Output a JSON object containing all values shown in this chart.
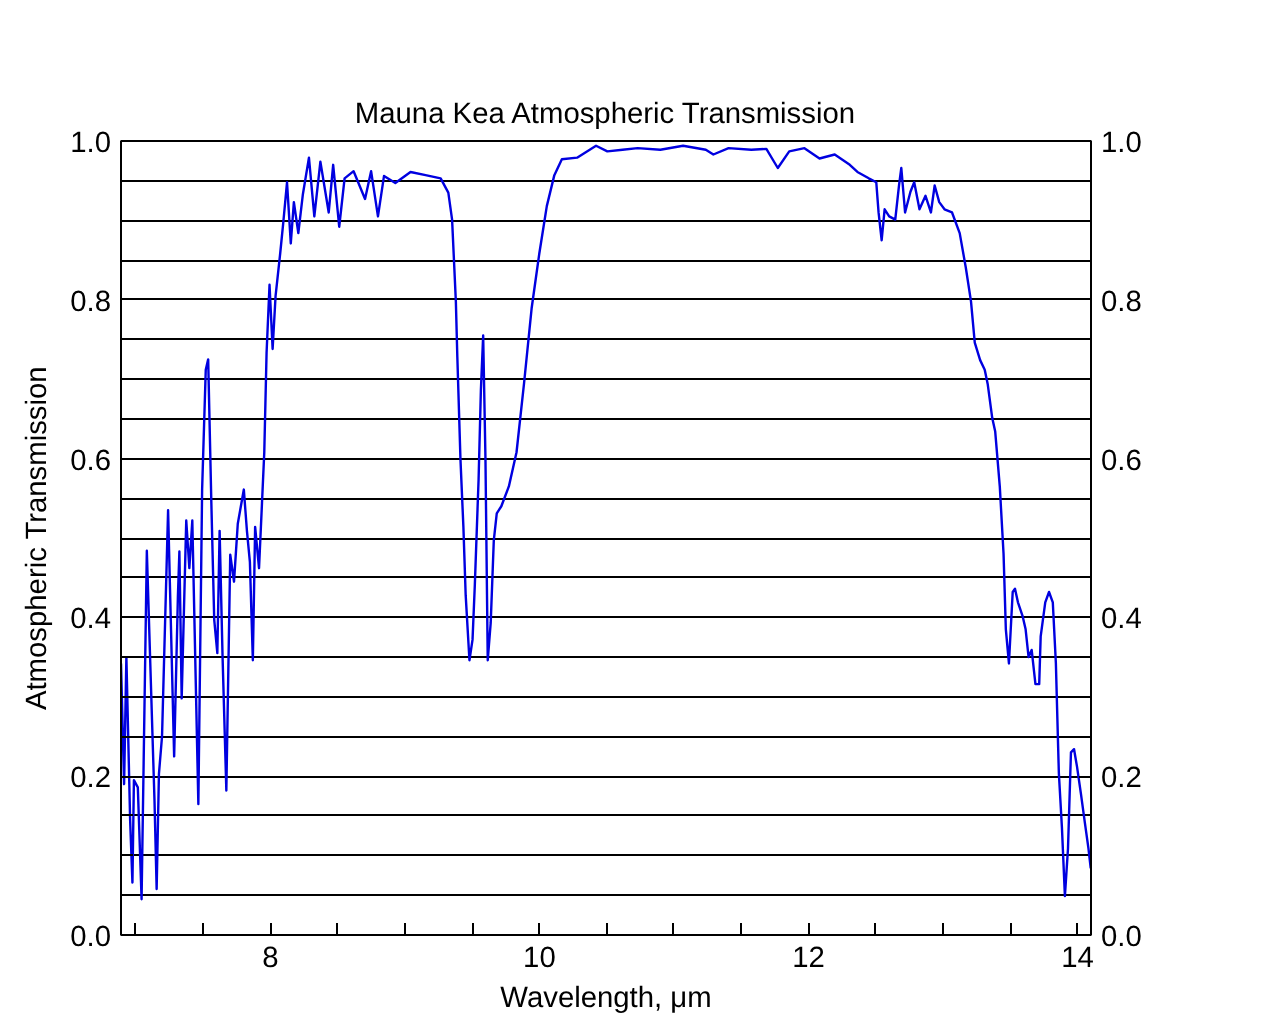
{
  "chart_data": {
    "type": "line",
    "title": "Mauna Kea Atmospheric Transmission",
    "xlabel": "Wavelength, μm",
    "ylabel": "Atmospheric Transmission",
    "x": [
      6.89,
      6.913,
      6.93,
      6.958,
      6.975,
      6.986,
      7.015,
      7.043,
      7.082,
      7.139,
      7.155,
      7.172,
      7.195,
      7.24,
      7.285,
      7.313,
      7.324,
      7.341,
      7.375,
      7.398,
      7.42,
      7.465,
      7.493,
      7.52,
      7.538,
      7.561,
      7.583,
      7.606,
      7.623,
      7.645,
      7.673,
      7.702,
      7.73,
      7.758,
      7.803,
      7.826,
      7.848,
      7.87,
      7.887,
      7.916,
      7.938,
      7.955,
      7.972,
      7.994,
      8.017,
      8.039,
      8.073,
      8.096,
      8.124,
      8.152,
      8.175,
      8.208,
      8.242,
      8.287,
      8.327,
      8.372,
      8.434,
      8.467,
      8.512,
      8.552,
      8.619,
      8.704,
      8.749,
      8.8,
      8.845,
      8.929,
      9.042,
      9.154,
      9.266,
      9.323,
      9.351,
      9.379,
      9.39,
      9.413,
      9.435,
      9.452,
      9.48,
      9.503,
      9.52,
      9.548,
      9.565,
      9.582,
      9.599,
      9.616,
      9.638,
      9.661,
      9.683,
      9.717,
      9.773,
      9.83,
      9.886,
      9.942,
      9.999,
      10.055,
      10.111,
      10.167,
      10.28,
      10.421,
      10.505,
      10.618,
      10.73,
      10.899,
      11.068,
      11.237,
      11.293,
      11.406,
      11.575,
      11.687,
      11.772,
      11.857,
      11.97,
      12.082,
      12.195,
      12.307,
      12.364,
      12.448,
      12.504,
      12.521,
      12.544,
      12.566,
      12.6,
      12.645,
      12.673,
      12.69,
      12.718,
      12.758,
      12.786,
      12.825,
      12.87,
      12.91,
      12.938,
      12.972,
      13.011,
      13.067,
      13.124,
      13.169,
      13.208,
      13.236,
      13.276,
      13.31,
      13.332,
      13.366,
      13.388,
      13.422,
      13.45,
      13.467,
      13.49,
      13.518,
      13.535,
      13.557,
      13.591,
      13.614,
      13.636,
      13.659,
      13.687,
      13.715,
      13.726,
      13.76,
      13.788,
      13.816,
      13.839,
      13.861,
      13.884,
      13.906,
      13.929,
      13.951,
      13.974,
      13.996,
      14.025,
      14.053,
      14.081,
      14.098
    ],
    "series": [
      {
        "color": "#0000e0",
        "values": [
          0.342,
          0.19,
          0.35,
          0.144,
          0.066,
          0.195,
          0.186,
          0.045,
          0.484,
          0.169,
          0.058,
          0.203,
          0.25,
          0.535,
          0.225,
          0.427,
          0.483,
          0.298,
          0.522,
          0.462,
          0.522,
          0.165,
          0.561,
          0.712,
          0.725,
          0.548,
          0.397,
          0.355,
          0.509,
          0.35,
          0.182,
          0.479,
          0.445,
          0.518,
          0.561,
          0.509,
          0.47,
          0.346,
          0.514,
          0.462,
          0.544,
          0.608,
          0.733,
          0.819,
          0.738,
          0.805,
          0.858,
          0.897,
          0.948,
          0.871,
          0.923,
          0.884,
          0.933,
          0.979,
          0.905,
          0.974,
          0.91,
          0.97,
          0.892,
          0.953,
          0.962,
          0.927,
          0.962,
          0.905,
          0.956,
          0.947,
          0.961,
          0.957,
          0.953,
          0.935,
          0.901,
          0.798,
          0.728,
          0.6,
          0.514,
          0.428,
          0.346,
          0.372,
          0.441,
          0.574,
          0.686,
          0.755,
          0.6,
          0.346,
          0.393,
          0.497,
          0.531,
          0.54,
          0.565,
          0.608,
          0.695,
          0.789,
          0.858,
          0.918,
          0.957,
          0.977,
          0.979,
          0.994,
          0.987,
          0.989,
          0.991,
          0.989,
          0.994,
          0.989,
          0.983,
          0.991,
          0.989,
          0.99,
          0.966,
          0.987,
          0.991,
          0.978,
          0.983,
          0.97,
          0.961,
          0.953,
          0.948,
          0.91,
          0.875,
          0.914,
          0.905,
          0.901,
          0.944,
          0.966,
          0.91,
          0.936,
          0.948,
          0.914,
          0.931,
          0.91,
          0.944,
          0.923,
          0.914,
          0.91,
          0.884,
          0.841,
          0.798,
          0.746,
          0.724,
          0.712,
          0.694,
          0.651,
          0.634,
          0.565,
          0.48,
          0.385,
          0.342,
          0.432,
          0.436,
          0.419,
          0.402,
          0.385,
          0.35,
          0.359,
          0.316,
          0.316,
          0.376,
          0.419,
          0.432,
          0.419,
          0.342,
          0.204,
          0.135,
          0.049,
          0.109,
          0.23,
          0.234,
          0.212,
          0.178,
          0.143,
          0.109,
          0.084
        ]
      }
    ],
    "xlim": [
      6.89,
      14.1
    ],
    "xticks": [
      {
        "value": 7,
        "label": null
      },
      {
        "value": 7.5,
        "label": null
      },
      8,
      {
        "value": 8.5,
        "label": null
      },
      {
        "value": 9,
        "label": null
      },
      {
        "value": 9.5,
        "label": null
      },
      10,
      {
        "value": 10.5,
        "label": null
      },
      {
        "value": 11,
        "label": null
      },
      {
        "value": 11.5,
        "label": null
      },
      12,
      {
        "value": 12.5,
        "label": null
      },
      {
        "value": 13,
        "label": null
      },
      {
        "value": 13.5,
        "label": null
      },
      14
    ],
    "ylim": [
      0,
      1
    ],
    "yticks": [
      {
        "value": 0,
        "label": "0.0"
      },
      {
        "value": 0.05,
        "label": null
      },
      {
        "value": 0.1,
        "label": null
      },
      {
        "value": 0.15,
        "label": null
      },
      0.2,
      {
        "value": 0.25,
        "label": null
      },
      {
        "value": 0.3,
        "label": null
      },
      {
        "value": 0.35,
        "label": null
      },
      0.4,
      {
        "value": 0.45,
        "label": null
      },
      {
        "value": 0.5,
        "label": null
      },
      {
        "value": 0.55,
        "label": null
      },
      0.6,
      {
        "value": 0.65,
        "label": null
      },
      {
        "value": 0.7,
        "label": null
      },
      {
        "value": 0.75,
        "label": null
      },
      0.8,
      {
        "value": 0.85,
        "label": null
      },
      {
        "value": 0.9,
        "label": null
      },
      {
        "value": 0.95,
        "label": null
      },
      {
        "value": 1,
        "label": "1.0"
      }
    ],
    "y2lim": [
      0,
      1
    ],
    "y2ticks": [
      {
        "value": 0,
        "label": "0.0"
      },
      0.2,
      0.4,
      0.6,
      0.8,
      {
        "value": 1,
        "label": "1.0"
      }
    ],
    "grid": "y",
    "line_style": "solid"
  }
}
